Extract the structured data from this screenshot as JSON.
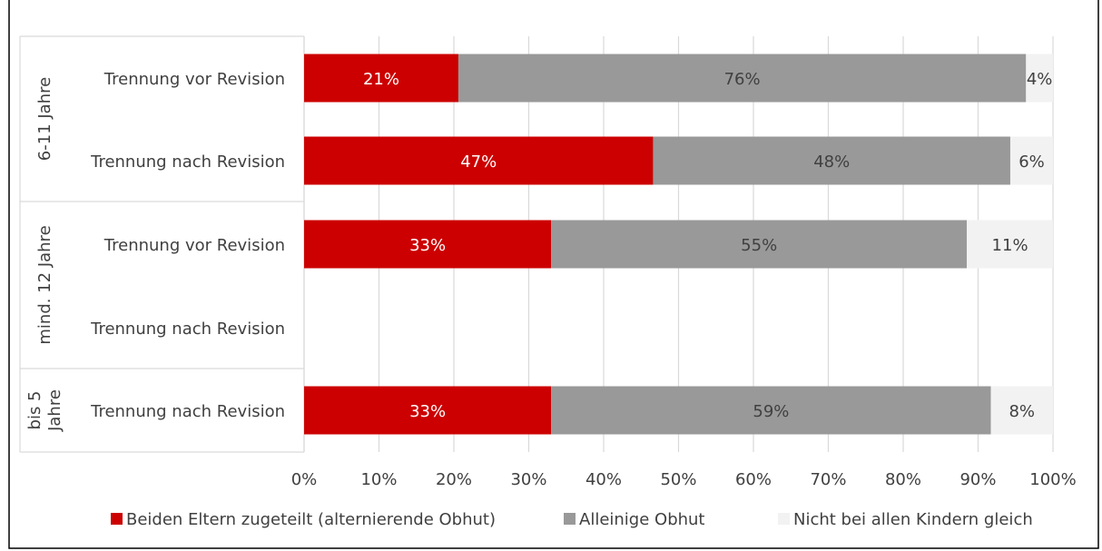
{
  "chart_data": {
    "type": "bar",
    "orientation": "horizontal",
    "stacked": true,
    "percent": true,
    "title": "",
    "xlabel": "",
    "ylabel": "",
    "xlim": [
      0,
      100
    ],
    "x_ticks": [
      "0%",
      "10%",
      "20%",
      "30%",
      "40%",
      "50%",
      "60%",
      "70%",
      "80%",
      "90%",
      "100%"
    ],
    "grid": true,
    "legend_position": "bottom",
    "groups": [
      {
        "label": "6-11 Jahre",
        "label_lines": [
          "6-11 Jahre"
        ],
        "rows": [
          0,
          1
        ]
      },
      {
        "label": "mind. 12 Jahre",
        "label_lines": [
          "mind. 12 Jahre"
        ],
        "rows": [
          2,
          3
        ]
      },
      {
        "label": "bis 5 Jahre",
        "label_lines": [
          "bis 5",
          "Jahre"
        ],
        "rows": [
          4
        ]
      }
    ],
    "categories": [
      "Trennung vor Revision",
      "Trennung nach Revision",
      "Trennung vor Revision",
      "Trennung nach Revision",
      "Trennung nach Revision"
    ],
    "series": [
      {
        "name": "Beiden Eltern zugeteilt (alternierende Obhut)",
        "color": "#cc0000",
        "label_color": "#ffffff",
        "values": [
          20.6,
          46.6,
          33,
          null,
          33
        ],
        "labels": [
          "21%",
          "47%",
          "33%",
          "",
          "33%"
        ]
      },
      {
        "name": "Alleinige Obhut",
        "color": "#999999",
        "label_color": "#404040",
        "values": [
          75.8,
          47.7,
          55.5,
          null,
          58.7
        ],
        "labels": [
          "76%",
          "48%",
          "55%",
          "",
          "59%"
        ]
      },
      {
        "name": "Nicht bei allen Kindern gleich",
        "color": "#f2f2f2",
        "label_color": "#404040",
        "values": [
          3.6,
          5.7,
          11.5,
          null,
          8.3
        ],
        "labels": [
          "4%",
          "6%",
          "11%",
          "",
          "8%"
        ]
      }
    ]
  },
  "colors": {
    "grid": "#d9d9d9",
    "text": "#404040",
    "border": "#000000"
  }
}
